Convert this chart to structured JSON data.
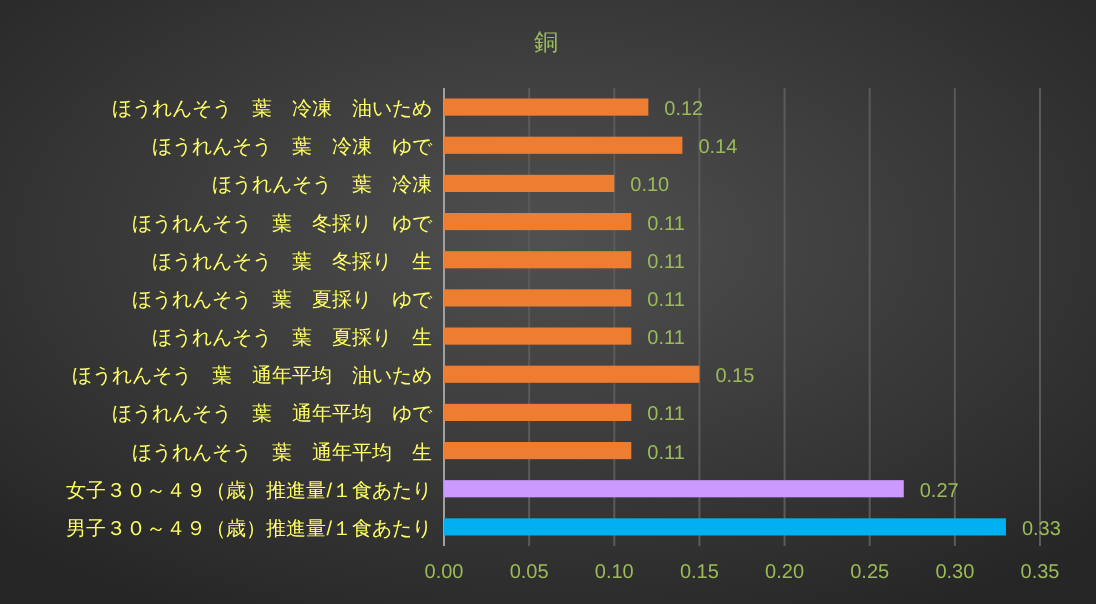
{
  "chart_data": {
    "type": "bar",
    "orientation": "horizontal",
    "title": "銅",
    "categories": [
      "ほうれんそう　葉　冷凍　油いため",
      "ほうれんそう　葉　冷凍　ゆで",
      "ほうれんそう　葉　冷凍",
      "ほうれんそう　葉　冬採り　ゆで",
      "ほうれんそう　葉　冬採り　生",
      "ほうれんそう　葉　夏採り　ゆで",
      "ほうれんそう　葉　夏採り　生",
      "ほうれんそう　葉　通年平均　油いため",
      "ほうれんそう　葉　通年平均　ゆで",
      "ほうれんそう　葉　通年平均　生",
      "女子３０～４９（歳）推進量/１食あたり",
      "男子３０～４９（歳）推進量/１食あたり"
    ],
    "values": [
      0.12,
      0.14,
      0.1,
      0.11,
      0.11,
      0.11,
      0.11,
      0.15,
      0.11,
      0.11,
      0.27,
      0.33
    ],
    "value_labels": [
      "0.12",
      "0.14",
      "0.10",
      "0.11",
      "0.11",
      "0.11",
      "0.11",
      "0.15",
      "0.11",
      "0.11",
      "0.27",
      "0.33"
    ],
    "colors": [
      "#ed7d31",
      "#ed7d31",
      "#ed7d31",
      "#ed7d31",
      "#ed7d31",
      "#ed7d31",
      "#ed7d31",
      "#ed7d31",
      "#ed7d31",
      "#ed7d31",
      "#cc99ff",
      "#00b0f0"
    ],
    "xlim": [
      0,
      0.35
    ],
    "xticks": [
      {
        "value": 0,
        "label": "0.00"
      },
      {
        "value": 0.05,
        "label": "0.05"
      },
      {
        "value": 0.1,
        "label": "0.10"
      },
      {
        "value": 0.15,
        "label": "0.15"
      },
      {
        "value": 0.2,
        "label": "0.20"
      },
      {
        "value": 0.25,
        "label": "0.25"
      },
      {
        "value": 0.3,
        "label": "0.30"
      },
      {
        "value": 0.35,
        "label": "0.35"
      }
    ],
    "grid": "x"
  }
}
